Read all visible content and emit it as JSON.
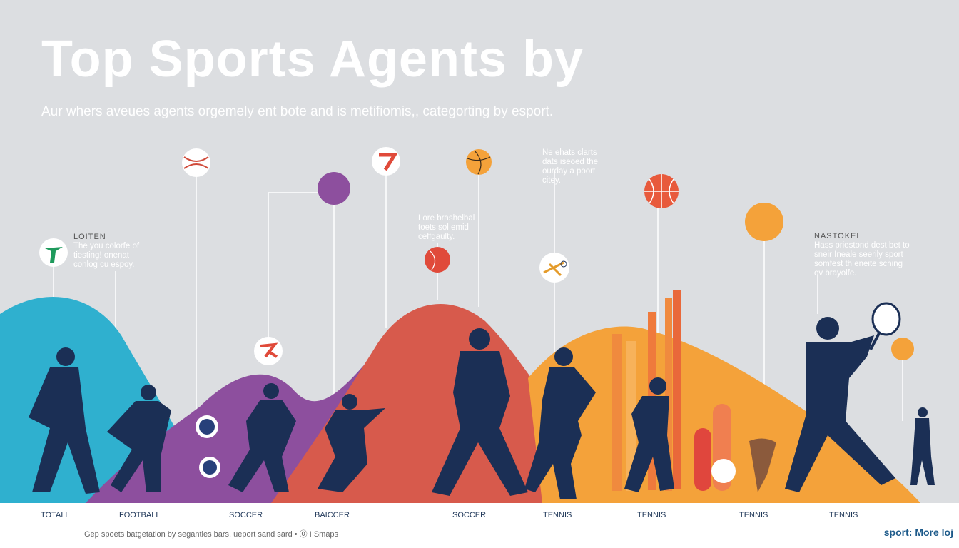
{
  "title": "Top Sports Agents by",
  "subtitle": "Aur whers aveues agents orgemely ent bote and is metifiomis,, categorting by esport.",
  "notes": [
    {
      "heading": "LOITEN",
      "body": "The you colorfe of\ntiesting! onenat\nconlog cu espoy."
    },
    {
      "heading": "",
      "body": "Lore brashelbal\ntoets sol emid\nceffgaulty."
    },
    {
      "heading": "",
      "body": "Ne  ehats clarts\ndats iseoed the\nourday a poort\ncitey."
    },
    {
      "heading": "NASTOKEL",
      "body": "Hass priestond dest bet to\nsneir Ineale seerily sport\nsomfest th eneite sching\nov brayolfe."
    }
  ],
  "categories": [
    "TOTALL",
    "FOOTBALL",
    "SOCCER",
    "BAICCER",
    "SOCCER",
    "TENNIS",
    "TENNIS",
    "TENNIS",
    "TENNIS"
  ],
  "caption": "Gep spoets batgetation by segantles bars, ueport sand sard • ⓪ I Smaps",
  "more_link": "sport: More loj",
  "colors": {
    "blue": "#2fb0cf",
    "purple": "#8d4f9e",
    "coral": "#d75a4c",
    "orange": "#f4a23a",
    "navy": "#1b2f55",
    "background": "#dcdee1"
  },
  "icons": [
    "t-logo-icon",
    "baseball-icon",
    "x-logo-icon",
    "purple-ball-icon",
    "seven-logo-icon",
    "basketball-icon",
    "tennis-ball-icon",
    "badminton-icon",
    "basketball-icon",
    "orange-ball-icon",
    "tennis-racket-icon",
    "soccer-ball-icon"
  ]
}
